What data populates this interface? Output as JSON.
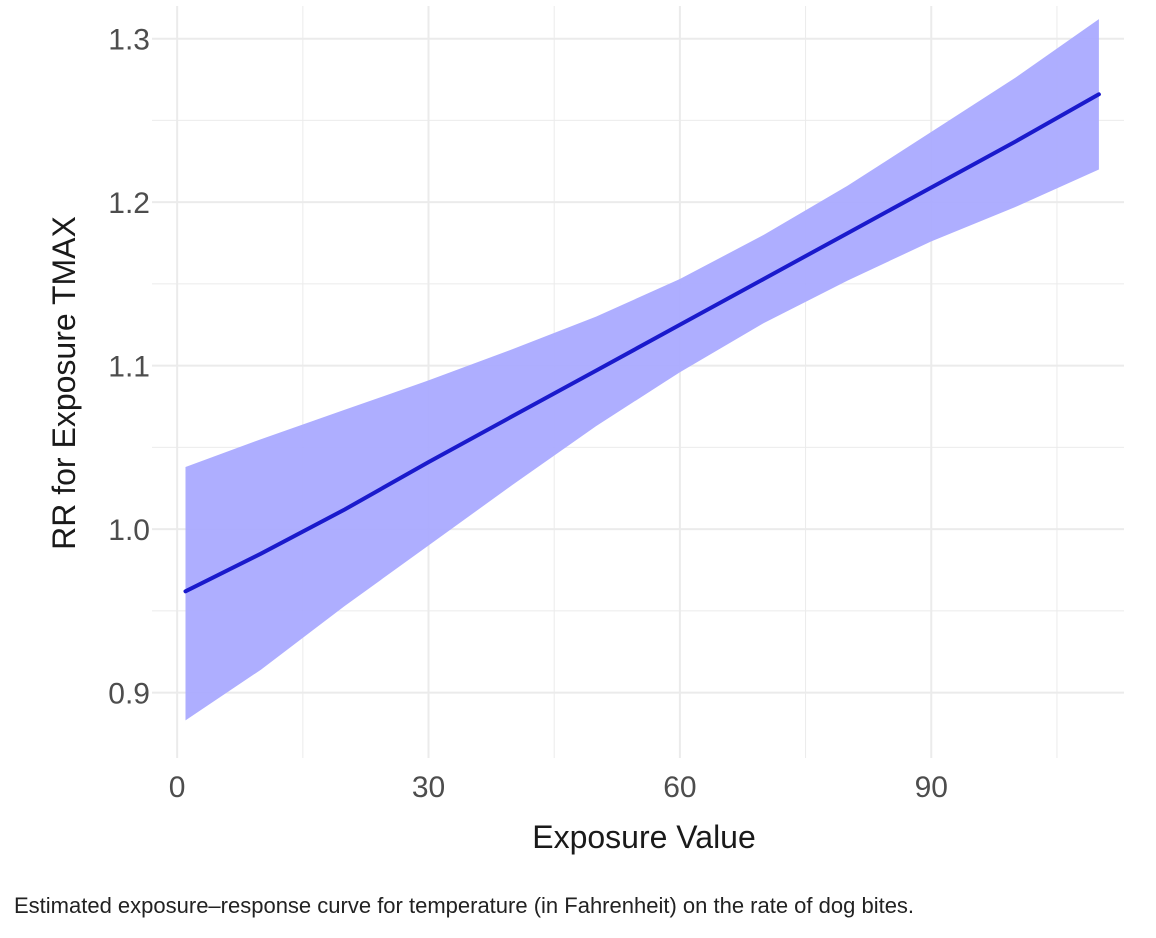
{
  "chart_data": {
    "type": "line",
    "title": "",
    "xlabel": "Exposure Value",
    "ylabel": "RR for Exposure TMAX",
    "xlim": [
      -3,
      113
    ],
    "ylim": [
      0.86,
      1.32
    ],
    "x_ticks": [
      0,
      30,
      60,
      90
    ],
    "x_tick_labels": [
      "0",
      "30",
      "60",
      "90"
    ],
    "x_minor_ticks": [
      15,
      45,
      75,
      105
    ],
    "y_ticks": [
      0.9,
      1.0,
      1.1,
      1.2,
      1.3
    ],
    "y_tick_labels": [
      "0.9",
      "1.0",
      "1.1",
      "1.2",
      "1.3"
    ],
    "y_minor_ticks": [
      0.95,
      1.05,
      1.15,
      1.25
    ],
    "grid": true,
    "legend": "none",
    "series": [
      {
        "x": [
          1,
          10,
          20,
          30,
          40,
          50,
          60,
          70,
          80,
          90,
          100,
          110
        ],
        "y": [
          0.962,
          0.985,
          1.012,
          1.041,
          1.069,
          1.097,
          1.125,
          1.153,
          1.181,
          1.209,
          1.237,
          1.266
        ],
        "ci_lower": [
          0.883,
          0.914,
          0.953,
          0.99,
          1.027,
          1.063,
          1.096,
          1.126,
          1.152,
          1.176,
          1.197,
          1.22
        ],
        "ci_upper": [
          1.038,
          1.055,
          1.073,
          1.091,
          1.11,
          1.13,
          1.153,
          1.18,
          1.21,
          1.243,
          1.276,
          1.312
        ]
      }
    ],
    "colors": {
      "line": "#1a1acc",
      "band": "#aaaaff",
      "grid": "#ebebeb"
    }
  },
  "caption": "Estimated exposure–response curve for temperature (in Fahrenheit) on the rate of dog bites."
}
